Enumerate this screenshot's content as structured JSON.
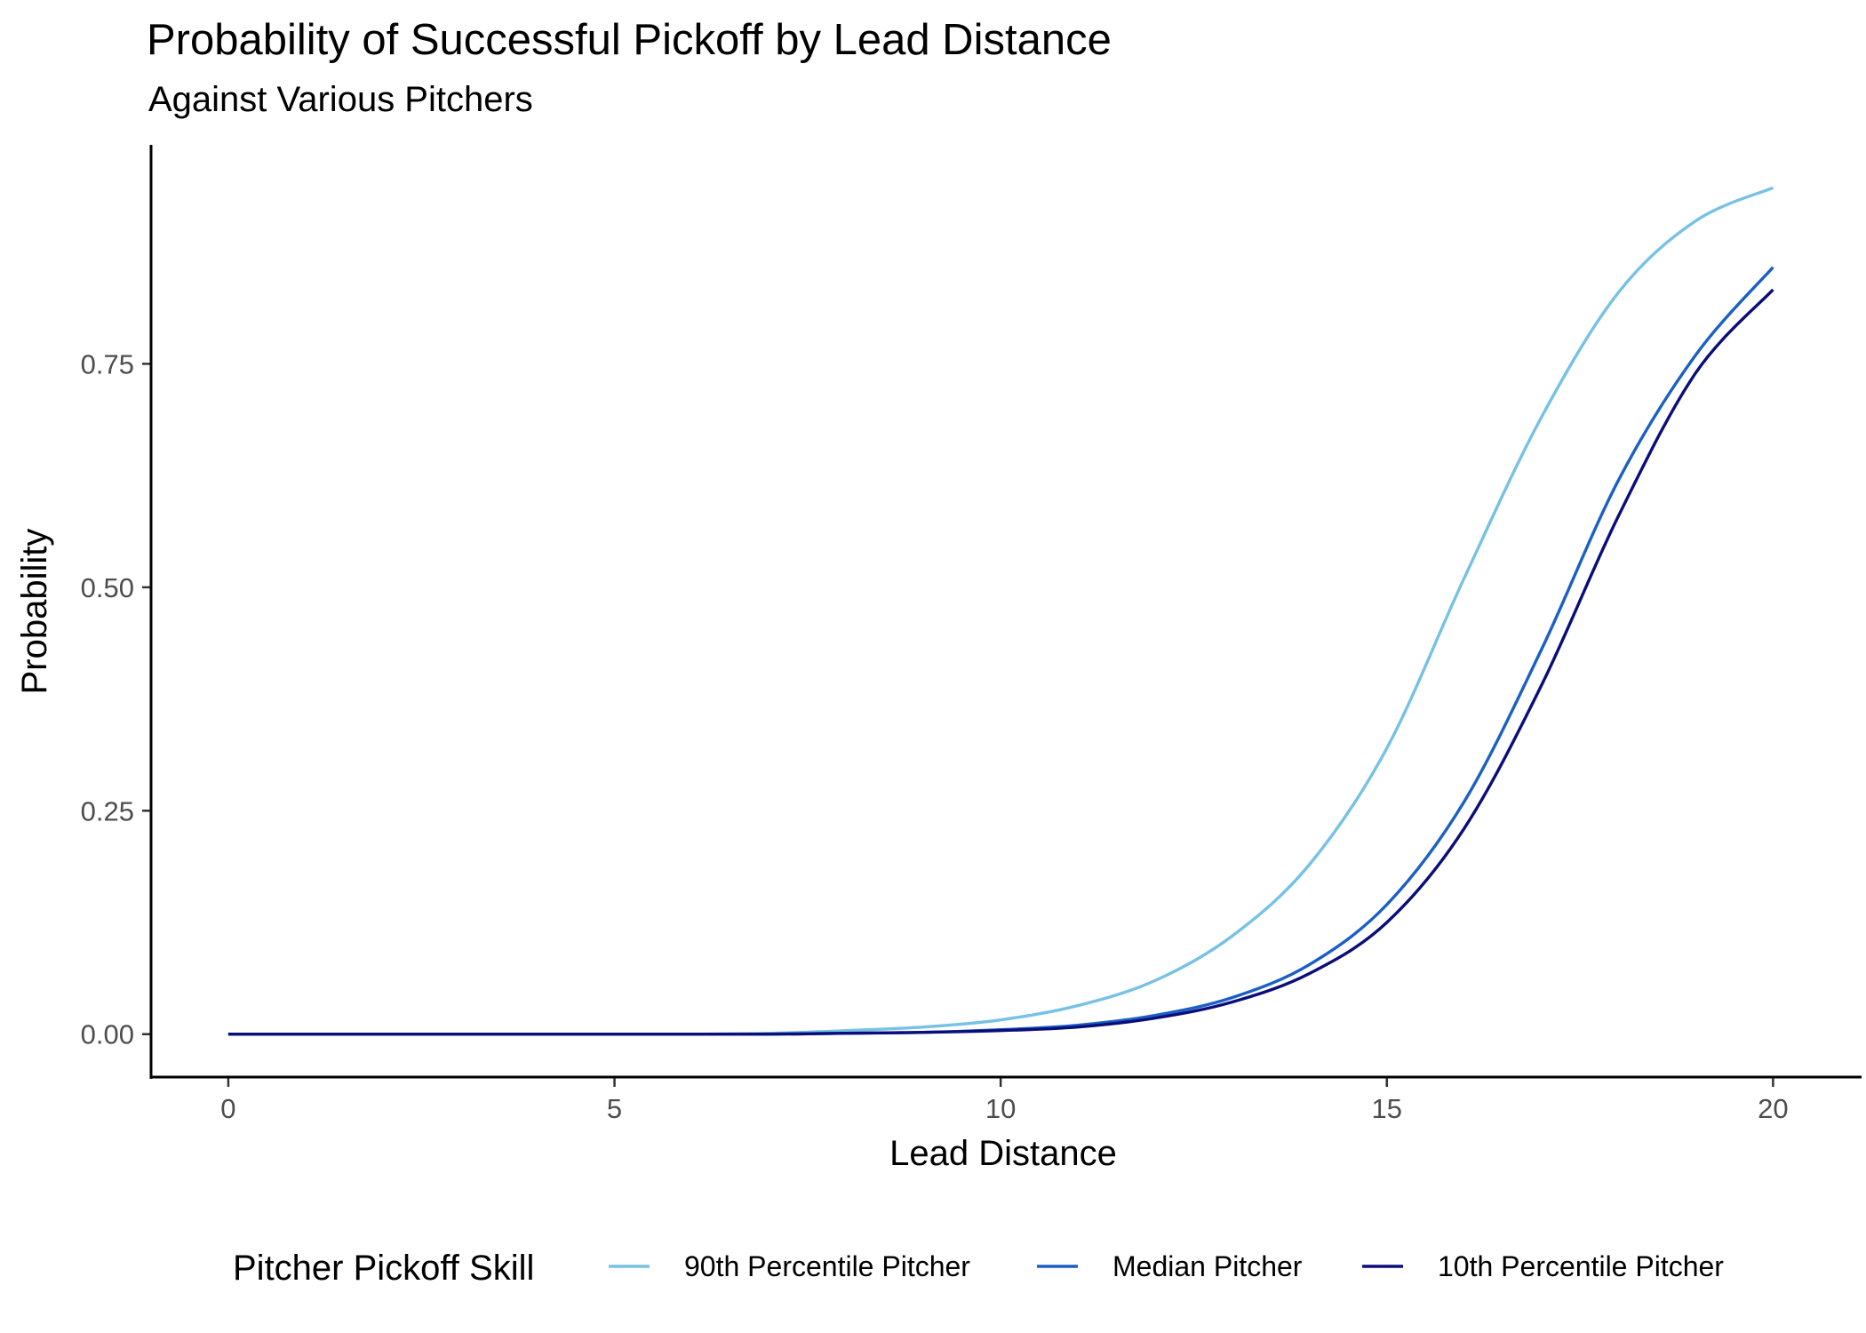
{
  "chart_data": {
    "type": "line",
    "title": "Probability of Successful Pickoff by Lead Distance",
    "subtitle": "Against Various Pitchers",
    "xlabel": "Lead Distance",
    "ylabel": "Probability",
    "xlim": [
      -1,
      21.1
    ],
    "ylim": [
      -0.048,
      0.995
    ],
    "x_ticks": [
      0,
      5,
      10,
      15,
      20
    ],
    "x_tick_labels": [
      "0",
      "5",
      "10",
      "15",
      "20"
    ],
    "y_ticks": [
      0,
      0.25,
      0.5,
      0.75
    ],
    "y_tick_labels": [
      "0.00",
      "0.25",
      "0.50",
      "0.75"
    ],
    "grid": false,
    "legend": {
      "title": "Pitcher Pickoff Skill",
      "position": "bottom"
    },
    "x": [
      0,
      2,
      4,
      6,
      7,
      8,
      9,
      10,
      11,
      12,
      13,
      14,
      15,
      16,
      17,
      18,
      19,
      20
    ],
    "series": [
      {
        "name": "90th Percentile Pitcher",
        "color": "#76c1e6",
        "values": [
          0.0,
          0.0,
          0.0,
          0.0,
          0.001,
          0.004,
          0.008,
          0.016,
          0.032,
          0.06,
          0.11,
          0.19,
          0.32,
          0.51,
          0.69,
          0.83,
          0.91,
          0.947
        ]
      },
      {
        "name": "Median Pitcher",
        "color": "#1a60c4",
        "values": [
          0.0,
          0.0,
          0.0,
          0.0,
          0.0,
          0.001,
          0.002,
          0.005,
          0.01,
          0.021,
          0.041,
          0.078,
          0.145,
          0.26,
          0.43,
          0.62,
          0.76,
          0.858
        ]
      },
      {
        "name": "10th Percentile Pitcher",
        "color": "#0b0d7a",
        "values": [
          0.0,
          0.0,
          0.0,
          0.0,
          0.0,
          0.001,
          0.002,
          0.004,
          0.008,
          0.018,
          0.036,
          0.068,
          0.125,
          0.23,
          0.39,
          0.58,
          0.74,
          0.833
        ]
      }
    ]
  }
}
